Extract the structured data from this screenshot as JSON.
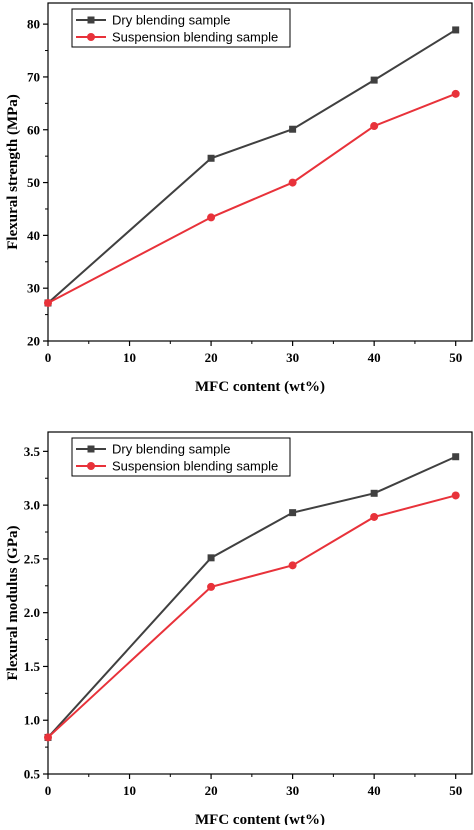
{
  "chart_data": [
    {
      "type": "line",
      "xlabel": "MFC content (wt%)",
      "ylabel": "Flexural strength (MPa)",
      "xlim": [
        0,
        52
      ],
      "ylim": [
        20,
        84
      ],
      "xticks": [
        0,
        10,
        20,
        30,
        40,
        50
      ],
      "yticks": [
        20,
        30,
        40,
        50,
        60,
        70,
        80
      ],
      "x": [
        0,
        20,
        30,
        40,
        50
      ],
      "legend_position": "top-left",
      "grid": false,
      "series": [
        {
          "name": "Dry blending sample",
          "color": "#404040",
          "marker": "square",
          "values": [
            27.2,
            54.6,
            60.1,
            69.4,
            78.9
          ]
        },
        {
          "name": "Suspension blending sample",
          "color": "#e8323a",
          "marker": "circle",
          "values": [
            27.2,
            43.4,
            50.0,
            60.7,
            66.8
          ]
        }
      ]
    },
    {
      "type": "line",
      "xlabel": "MFC content (wt%)",
      "ylabel": "Flexural modulus (GPa)",
      "xlim": [
        0,
        52
      ],
      "ylim": [
        0.5,
        3.68
      ],
      "xticks": [
        0,
        10,
        20,
        30,
        40,
        50
      ],
      "yticks": [
        0.5,
        1.0,
        1.5,
        2.0,
        2.5,
        3.0,
        3.5
      ],
      "yticks_labels": [
        "0.5",
        "1.0",
        "1.5",
        "2.0",
        "2.5",
        "3.0",
        "3.5"
      ],
      "x": [
        0,
        20,
        30,
        40,
        50
      ],
      "legend_position": "top-left",
      "grid": false,
      "series": [
        {
          "name": "Dry blending sample",
          "color": "#404040",
          "marker": "square",
          "values": [
            0.84,
            2.51,
            2.93,
            3.11,
            3.45
          ]
        },
        {
          "name": "Suspension blending sample",
          "color": "#e8323a",
          "marker": "circle",
          "values": [
            0.84,
            2.24,
            2.44,
            2.89,
            3.09
          ]
        }
      ]
    }
  ]
}
